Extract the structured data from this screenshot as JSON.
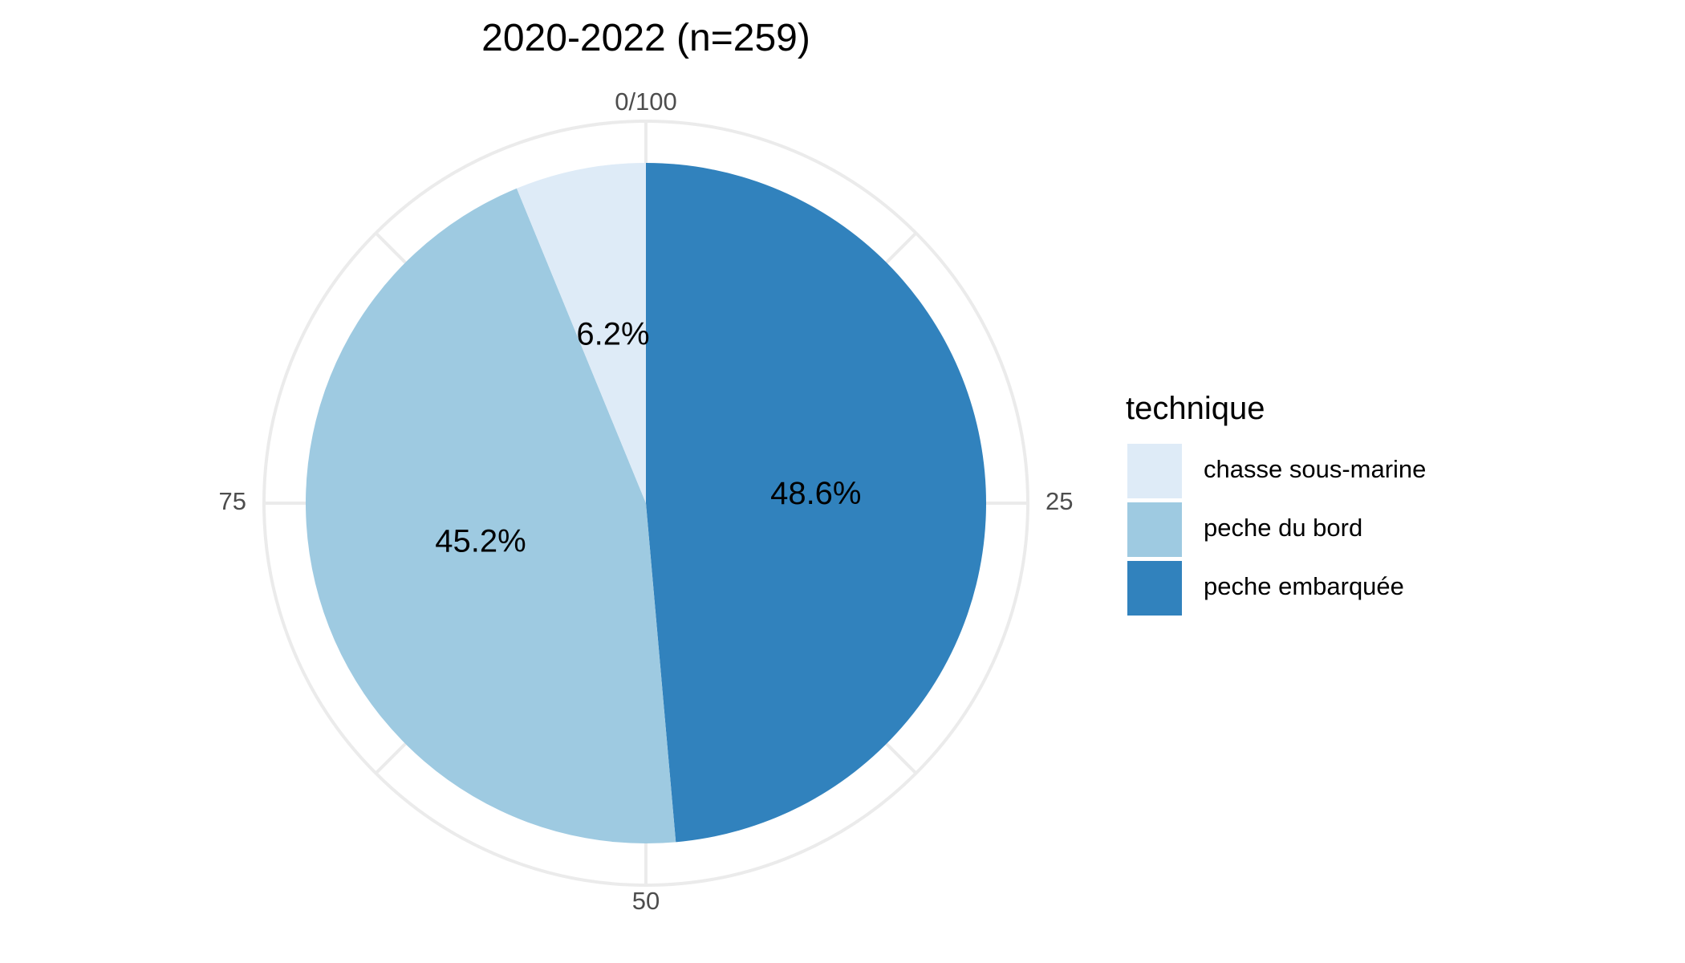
{
  "chart_data": {
    "type": "pie",
    "title": "2020-2022 (n=259)",
    "legend_title": "technique",
    "legend_position": "right",
    "grid": true,
    "axis_range": [
      0,
      100
    ],
    "ticks": [
      {
        "value": 0,
        "label": "0/100"
      },
      {
        "value": 25,
        "label": "25"
      },
      {
        "value": 50,
        "label": "50"
      },
      {
        "value": 75,
        "label": "75"
      }
    ],
    "slices": [
      {
        "name": "peche embarquée",
        "value": 48.6,
        "label": "48.6%",
        "color": "#3182bd"
      },
      {
        "name": "peche du bord",
        "value": 45.2,
        "label": "45.2%",
        "color": "#9ecae1"
      },
      {
        "name": "chasse sous-marine",
        "value": 6.2,
        "label": "6.2%",
        "color": "#deebf7"
      }
    ],
    "legend_order": [
      "chasse sous-marine",
      "peche du bord",
      "peche embarquée"
    ]
  }
}
